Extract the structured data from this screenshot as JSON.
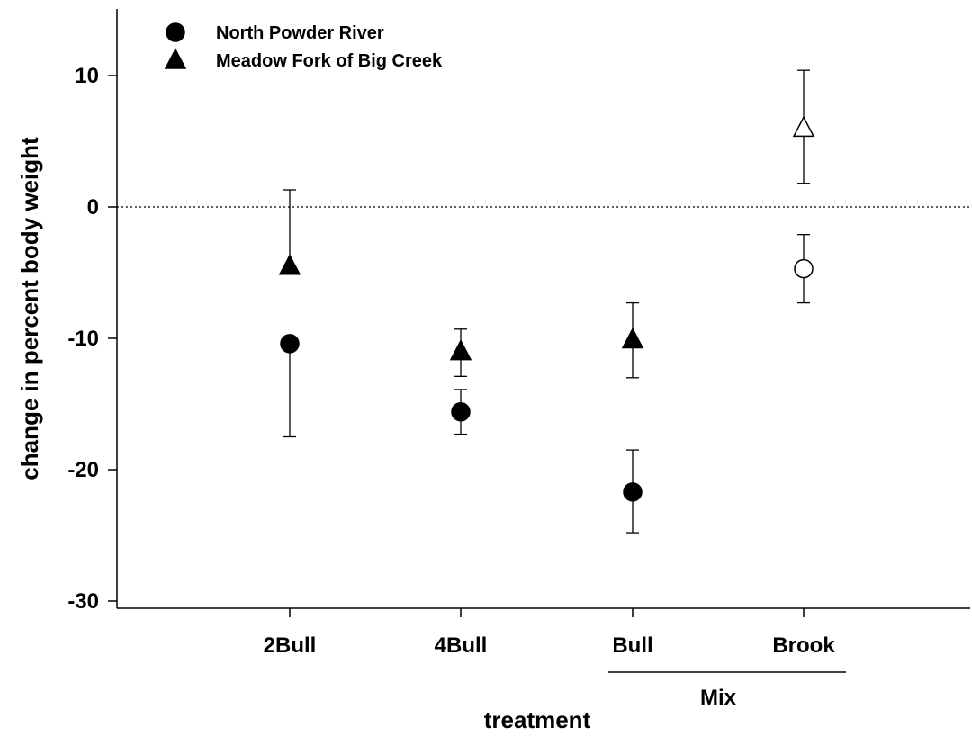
{
  "chart_data": {
    "type": "scatter",
    "xlabel": "treatment",
    "ylabel": "change in percent body weight",
    "categories": [
      "2Bull",
      "4Bull",
      "Bull",
      "Brook"
    ],
    "group_label": {
      "text": "Mix",
      "categories": [
        "Bull",
        "Brook"
      ]
    },
    "ylim": [
      -30,
      15
    ],
    "yticks": [
      10,
      0,
      -10,
      -20,
      -30
    ],
    "reference_line": {
      "y": 0,
      "style": "dotted"
    },
    "legend": {
      "position": "top-left"
    },
    "series": [
      {
        "name": "North Powder River",
        "marker": "circle",
        "points": [
          {
            "category": "2Bull",
            "y": -10.4,
            "err_lower": -17.5,
            "err_upper": null,
            "filled": true
          },
          {
            "category": "4Bull",
            "y": -15.6,
            "err_lower": -17.3,
            "err_upper": -13.9,
            "filled": true
          },
          {
            "category": "Bull",
            "y": -21.7,
            "err_lower": -24.8,
            "err_upper": -18.5,
            "filled": true
          },
          {
            "category": "Brook",
            "y": -4.7,
            "err_lower": -7.3,
            "err_upper": -2.1,
            "filled": false
          }
        ]
      },
      {
        "name": "Meadow Fork of Big Creek",
        "marker": "triangle",
        "points": [
          {
            "category": "2Bull",
            "y": -4.5,
            "err_lower": null,
            "err_upper": 1.3,
            "filled": true
          },
          {
            "category": "4Bull",
            "y": -11.0,
            "err_lower": -12.9,
            "err_upper": -9.3,
            "filled": true
          },
          {
            "category": "Bull",
            "y": -10.1,
            "err_lower": -13.0,
            "err_upper": -7.3,
            "filled": true
          },
          {
            "category": "Brook",
            "y": 6.0,
            "err_lower": 1.8,
            "err_upper": 10.4,
            "filled": false
          }
        ]
      }
    ]
  }
}
